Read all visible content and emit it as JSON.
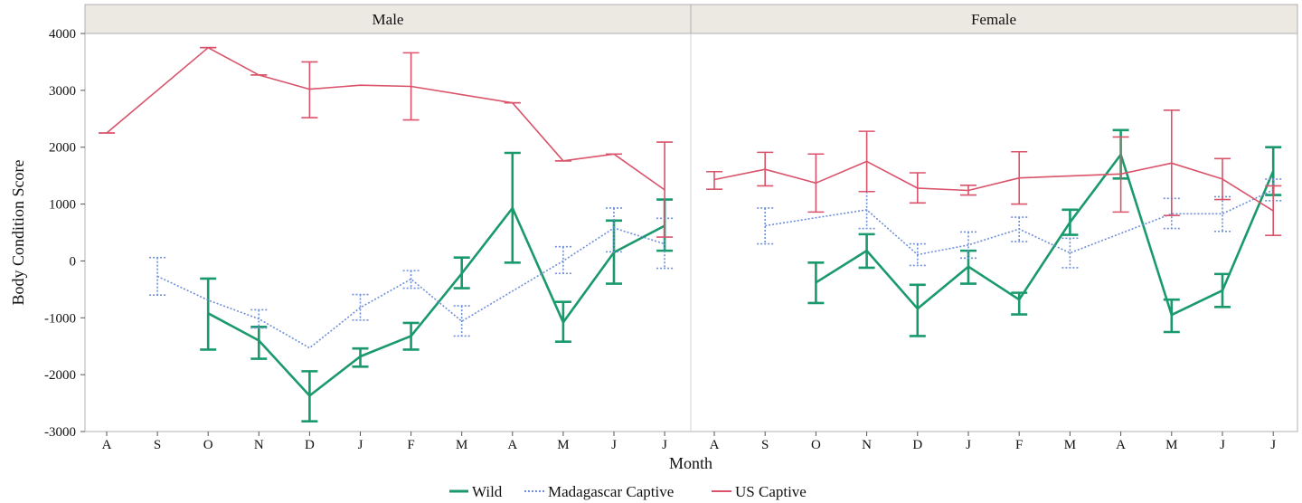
{
  "chart_data": {
    "type": "line",
    "panels": [
      "Male",
      "Female"
    ],
    "categories": [
      "A",
      "S",
      "O",
      "N",
      "D",
      "J",
      "F",
      "M",
      "A",
      "M",
      "J",
      "J"
    ],
    "xlabel": "Month",
    "ylabel": "Body Condition Score",
    "ylim": [
      -3000,
      4000
    ],
    "yticks": [
      -3000,
      -2000,
      -1000,
      0,
      1000,
      2000,
      3000,
      4000
    ],
    "legend_position": "bottom",
    "grid": false,
    "series": [
      {
        "name": "Wild",
        "color": "#1a9a6c",
        "style": "solid",
        "Male": {
          "values": [
            null,
            null,
            -920,
            -1400,
            -2370,
            -1680,
            -1320,
            -220,
            930,
            -1080,
            150,
            620
          ],
          "err_low": [
            null,
            null,
            -1560,
            -1720,
            -2820,
            -1860,
            -1560,
            -480,
            -30,
            -1420,
            -400,
            180
          ],
          "err_high": [
            null,
            null,
            -310,
            -1160,
            -1940,
            -1540,
            -1090,
            60,
            1900,
            -720,
            710,
            1080
          ]
        },
        "Female": {
          "values": [
            null,
            null,
            -380,
            180,
            -840,
            -100,
            -680,
            680,
            1870,
            -950,
            -520,
            1580
          ],
          "err_low": [
            null,
            null,
            -740,
            -120,
            -1320,
            -400,
            -940,
            460,
            1450,
            -1250,
            -810,
            1160
          ],
          "err_high": [
            null,
            null,
            -30,
            470,
            -420,
            180,
            -560,
            900,
            2300,
            -680,
            -230,
            2000
          ]
        }
      },
      {
        "name": "Madagascar Captive",
        "color": "#6f8fd8",
        "style": "dotted",
        "Male": {
          "values": [
            null,
            -270,
            -690,
            -1020,
            -1530,
            -820,
            -320,
            -1060,
            null,
            0,
            580,
            300
          ],
          "err_low": [
            null,
            -600,
            null,
            -1180,
            null,
            -1040,
            -480,
            -1320,
            null,
            -220,
            160,
            -130
          ],
          "err_high": [
            null,
            60,
            null,
            -860,
            null,
            -590,
            -170,
            -790,
            null,
            250,
            930,
            750
          ]
        },
        "Female": {
          "values": [
            null,
            620,
            null,
            900,
            110,
            280,
            560,
            140,
            null,
            830,
            830,
            1250
          ],
          "err_low": [
            null,
            300,
            null,
            570,
            -80,
            50,
            340,
            -120,
            null,
            570,
            520,
            1060
          ],
          "err_high": [
            null,
            930,
            null,
            1220,
            300,
            510,
            770,
            400,
            null,
            1100,
            1130,
            1440
          ]
        }
      },
      {
        "name": "US Captive",
        "color": "#d9536a",
        "style": "solid",
        "Male": {
          "values": [
            2250,
            null,
            3750,
            3270,
            3020,
            3090,
            3070,
            null,
            2780,
            1760,
            1880,
            1250
          ],
          "err_low": [
            2250,
            null,
            3750,
            3270,
            2520,
            null,
            2480,
            null,
            2780,
            1760,
            1880,
            420
          ],
          "err_high": [
            2250,
            null,
            3750,
            3270,
            3500,
            null,
            3660,
            null,
            2780,
            1760,
            1880,
            2090
          ]
        },
        "Female": {
          "values": [
            1430,
            1610,
            1370,
            1750,
            1280,
            1240,
            1460,
            null,
            1530,
            1720,
            1440,
            880
          ],
          "err_low": [
            1260,
            1320,
            860,
            1220,
            1020,
            1160,
            1000,
            null,
            860,
            800,
            1080,
            450
          ],
          "err_high": [
            1570,
            1910,
            1880,
            2280,
            1550,
            1330,
            1920,
            null,
            2180,
            2650,
            1800,
            1320
          ]
        }
      }
    ]
  }
}
